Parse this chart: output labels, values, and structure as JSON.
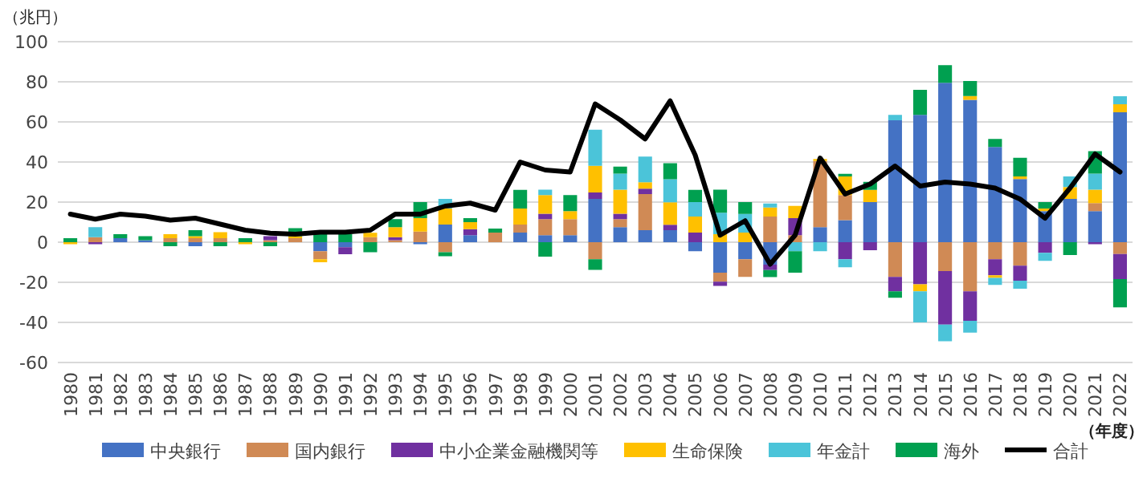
{
  "chart_data": {
    "type": "bar",
    "stacked": true,
    "xlabel": "（年度）",
    "ylabel": "（兆円）",
    "categories": [
      "1980",
      "1981",
      "1982",
      "1983",
      "1984",
      "1985",
      "1986",
      "1987",
      "1988",
      "1989",
      "1990",
      "1991",
      "1992",
      "1993",
      "1994",
      "1995",
      "1996",
      "1997",
      "1998",
      "1999",
      "2000",
      "2001",
      "2002",
      "2003",
      "2004",
      "2005",
      "2006",
      "2007",
      "2008",
      "2009",
      "2010",
      "2011",
      "2012",
      "2013",
      "2014",
      "2015",
      "2016",
      "2017",
      "2018",
      "2019",
      "2020",
      "2021",
      "2022"
    ],
    "ylim": [
      -60,
      100
    ],
    "yticks": [
      -60,
      -40,
      -20,
      0,
      20,
      40,
      60,
      80,
      100
    ],
    "grid": "y",
    "legend": "bottom",
    "series": [
      {
        "name": "中央銀行",
        "color": "#4472c4",
        "values": [
          0,
          0,
          2,
          1,
          0,
          -2,
          0,
          0,
          0,
          0,
          -4.5,
          -2.5,
          0,
          0,
          -1,
          8.8,
          3.5,
          0,
          4.8,
          3.5,
          3.5,
          21.6,
          7.5,
          6,
          6,
          -4.5,
          -15.2,
          -8.5,
          -11.2,
          0,
          7.5,
          11,
          20,
          60.8,
          63.5,
          79.5,
          71,
          47.5,
          31.5,
          15.5,
          21.6,
          15.5,
          64.8
        ]
      },
      {
        "name": "国内銀行",
        "color": "#d08a55",
        "values": [
          0,
          2.5,
          0,
          0,
          2,
          2,
          2,
          0,
          1,
          2,
          -4,
          0,
          2.5,
          1,
          5.3,
          -5,
          0,
          4.8,
          4,
          8,
          8,
          -8.5,
          4,
          18,
          0,
          0,
          -4.5,
          -8.8,
          12.8,
          3.5,
          33,
          12.5,
          0,
          -17.3,
          0,
          -14.4,
          -24.5,
          -8.5,
          -11.7,
          0,
          0,
          4,
          -5.9
        ]
      },
      {
        "name": "中小企業金融機関等",
        "color": "#7030a0",
        "values": [
          0,
          -1,
          0,
          0,
          0,
          0,
          0,
          0,
          2,
          0,
          0,
          -3.5,
          0,
          1.5,
          0,
          0,
          3,
          0,
          0,
          2.7,
          0,
          3.2,
          2.7,
          2.7,
          2.7,
          4.8,
          -2.1,
          0,
          -2.7,
          8.5,
          0,
          -8.5,
          -4,
          -7.2,
          -21,
          -26.7,
          -14.7,
          -8,
          -7.5,
          -5.3,
          0,
          -1,
          -12.5
        ]
      },
      {
        "name": "生命保険",
        "color": "#ffc000",
        "values": [
          -1,
          0,
          0,
          0,
          2,
          1,
          3,
          -1,
          0,
          1,
          -1.5,
          0,
          2.2,
          5,
          6.7,
          8,
          3.5,
          0,
          8,
          9.3,
          4,
          13.3,
          12,
          3.2,
          11.2,
          8,
          4,
          4.8,
          4.5,
          6.1,
          1,
          9.3,
          6.1,
          0,
          -3.5,
          0,
          1.9,
          -1.3,
          1.3,
          1.3,
          5.9,
          6.7,
          4
        ]
      },
      {
        "name": "年金計",
        "color": "#4bc4d9",
        "values": [
          0,
          5,
          0,
          0,
          0,
          0,
          0,
          0,
          0,
          0,
          0,
          0,
          0,
          0,
          0,
          4.8,
          0,
          0,
          0,
          2.7,
          0,
          18,
          8,
          12.8,
          11.5,
          7.2,
          10.7,
          9.3,
          2,
          -4.5,
          -4.5,
          -4,
          0,
          2.7,
          -15.5,
          -8.3,
          -5.9,
          -3.5,
          -4,
          -4,
          5.3,
          8,
          4
        ]
      },
      {
        "name": "海外",
        "color": "#00a050",
        "values": [
          2,
          0,
          2,
          2,
          -2,
          3,
          -2,
          2,
          -2,
          4,
          4,
          4,
          -5,
          4,
          8,
          -2,
          2,
          2,
          9.3,
          -7.2,
          8,
          -5.3,
          3.5,
          0,
          8,
          6.1,
          11.5,
          5.9,
          -3.5,
          -10.7,
          0,
          1.3,
          4,
          -3.2,
          12.5,
          8.8,
          7.5,
          4,
          9.3,
          3.2,
          -6.4,
          11.2,
          -14.1
        ]
      },
      {
        "name": "合計",
        "color": "#000000",
        "type": "line",
        "values": [
          14,
          11.5,
          14,
          13,
          11,
          12,
          9,
          6,
          4.5,
          4,
          5,
          5,
          6,
          14,
          14,
          18,
          19.5,
          16,
          40,
          36,
          35,
          69,
          61,
          51.5,
          70.5,
          43.5,
          3.5,
          10.7,
          -11,
          3.5,
          42,
          24,
          29,
          38,
          28,
          30,
          29,
          27,
          21.5,
          12,
          27,
          44,
          35
        ]
      }
    ]
  }
}
